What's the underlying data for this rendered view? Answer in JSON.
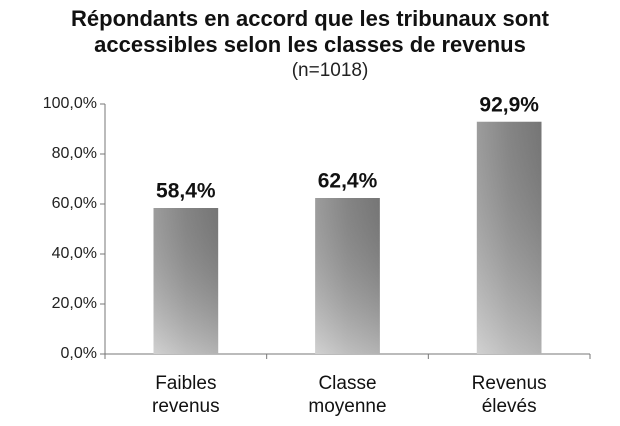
{
  "chart_data": {
    "type": "bar",
    "title": "Répondants en accord que les tribunaux sont accessibles selon les classes de revenus",
    "subtitle": "(n=1018)",
    "categories": [
      "Faibles revenus",
      "Classe moyenne",
      "Revenus élevés"
    ],
    "values": [
      58.4,
      62.4,
      92.9
    ],
    "value_labels": [
      "58,4%",
      "62,4%",
      "92,9%"
    ],
    "color": "#9a9a9a",
    "ylim": [
      0,
      100
    ],
    "yticks": [
      {
        "value": 0,
        "label": "0,0%"
      },
      {
        "value": 20,
        "label": "20,0%"
      },
      {
        "value": 40,
        "label": "40,0%"
      },
      {
        "value": 60,
        "label": "60,0%"
      },
      {
        "value": 80,
        "label": "80,0%"
      },
      {
        "value": 100,
        "label": "100,0%"
      }
    ],
    "grid": false
  }
}
